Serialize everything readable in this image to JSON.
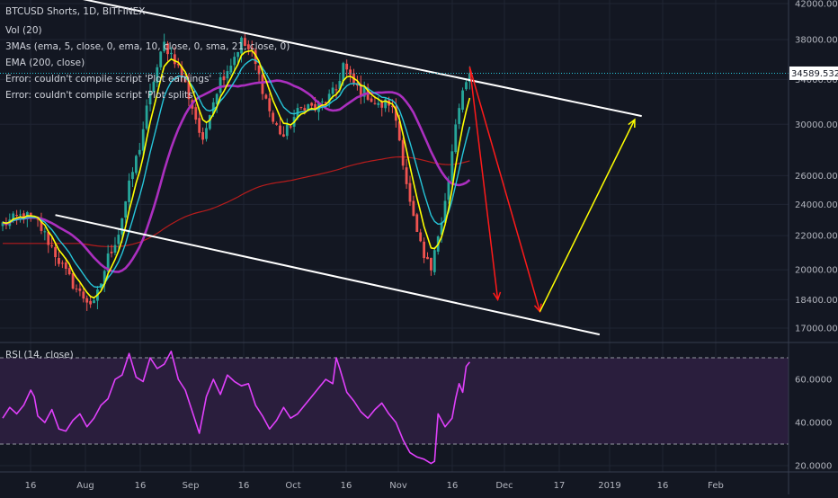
{
  "header": {
    "symbol_line": "BTCUSD Shorts, 1D, BITFINEX",
    "indicators": [
      "Vol (20)",
      "3MAs (ema, 5, close, 0, ema, 10, close, 0, sma, 21, close, 0)",
      "EMA (200, close)",
      "Error: couldn't compile script 'Plot earnings'",
      "Error: couldn't compile script 'Plot splits'"
    ]
  },
  "price_label": "34589.5329",
  "colors": {
    "background": "#131722",
    "grid": "#1f2433",
    "up": "#26a69a",
    "down": "#ef5350",
    "ema5": "#ffff00",
    "ema10": "#26c6da",
    "sma21": "#ab2fbf",
    "ema200": "#b71c1c",
    "channel": "#ffffff",
    "rsi": "#e040fb",
    "rsi_band": "#2a1e3d",
    "price_tag": "#ffffff",
    "projection_down": "#ff1a1a",
    "projection_up": "#ffff00"
  },
  "chart_data": [
    {
      "type": "candlestick",
      "title": "BTCUSD Shorts, 1D, BITFINEX",
      "y_scale": "log",
      "ylim": [
        16500,
        42500
      ],
      "y_ticks": [
        42000,
        38000,
        34000,
        30000,
        26000,
        24000,
        22000,
        20000,
        18400,
        17000
      ],
      "y_tick_labels": [
        "42000.0000",
        "38000.0000",
        "34000.0000",
        "30000.0000",
        "26000.0000",
        "24000.0000",
        "22000.0000",
        "20000.0000",
        "18400.0000",
        "17000.0000"
      ],
      "x_tick_labels": [
        "16",
        "Aug",
        "16",
        "Sep",
        "16",
        "Oct",
        "16",
        "Nov",
        "16",
        "Dec",
        "17",
        "2019",
        "16",
        "Feb"
      ],
      "last_value": 34589.5329,
      "close_path": [
        [
          0,
          22700
        ],
        [
          6,
          23300
        ],
        [
          10,
          22800
        ],
        [
          14,
          21300
        ],
        [
          18,
          19800
        ],
        [
          22,
          18700
        ],
        [
          26,
          18100
        ],
        [
          28,
          19300
        ],
        [
          30,
          20700
        ],
        [
          33,
          22200
        ],
        [
          35,
          24200
        ],
        [
          37,
          26300
        ],
        [
          39,
          28200
        ],
        [
          41,
          31200
        ],
        [
          43,
          34000
        ],
        [
          46,
          37500
        ],
        [
          49,
          36000
        ],
        [
          52,
          33500
        ],
        [
          55,
          30500
        ],
        [
          57,
          28300
        ],
        [
          59,
          31300
        ],
        [
          62,
          34000
        ],
        [
          65,
          35600
        ],
        [
          68,
          37800
        ],
        [
          71,
          36500
        ],
        [
          74,
          33200
        ],
        [
          77,
          30200
        ],
        [
          80,
          29000
        ],
        [
          83,
          30600
        ],
        [
          86,
          31700
        ],
        [
          89,
          31300
        ],
        [
          92,
          32000
        ],
        [
          95,
          33000
        ],
        [
          97,
          35500
        ],
        [
          99,
          34000
        ],
        [
          101,
          33200
        ],
        [
          104,
          32600
        ],
        [
          107,
          31500
        ],
        [
          110,
          31900
        ],
        [
          112,
          30400
        ],
        [
          114,
          27200
        ],
        [
          116,
          24000
        ],
        [
          118,
          22000
        ],
        [
          120,
          20600
        ],
        [
          122,
          20100
        ],
        [
          123,
          21500
        ],
        [
          125,
          22800
        ],
        [
          127,
          25500
        ],
        [
          129,
          30000
        ],
        [
          131,
          32500
        ],
        [
          133,
          34589.5
        ]
      ],
      "projection_down": [
        [
          133,
          35200
        ],
        [
          141,
          18400
        ],
        [
          153,
          17800
        ]
      ],
      "projection_up": [
        [
          153,
          17800
        ],
        [
          180,
          30400
        ]
      ],
      "channel_upper": [
        [
          22,
          42600
        ],
        [
          182,
          30700
        ]
      ],
      "channel_lower": [
        [
          15,
          23300
        ],
        [
          170,
          16700
        ]
      ]
    },
    {
      "type": "line",
      "title": "RSI (14, close)",
      "ylim": [
        18,
        78
      ],
      "y_ticks": [
        60,
        40,
        20
      ],
      "y_tick_labels": [
        "60.0000",
        "40.0000",
        "20.0000"
      ],
      "bands": [
        30,
        70
      ],
      "x": [
        0,
        2,
        4,
        6,
        8,
        9,
        10,
        12,
        14,
        16,
        18,
        20,
        22,
        24,
        26,
        28,
        30,
        32,
        34,
        36,
        38,
        40,
        42,
        44,
        46,
        48,
        50,
        52,
        54,
        56,
        58,
        60,
        62,
        64,
        66,
        68,
        70,
        72,
        74,
        76,
        78,
        80,
        82,
        84,
        86,
        88,
        90,
        92,
        94,
        95,
        96,
        98,
        100,
        102,
        104,
        106,
        108,
        110,
        112,
        114,
        116,
        118,
        120,
        122,
        123,
        124,
        126,
        128,
        129,
        130,
        131,
        132,
        133
      ],
      "values": [
        42,
        47,
        44,
        48,
        55,
        52,
        43,
        40,
        46,
        37,
        36,
        41,
        44,
        38,
        42,
        48,
        51,
        60,
        62,
        72,
        61,
        59,
        70,
        65,
        67,
        73,
        60,
        55,
        45,
        35,
        52,
        60,
        53,
        62,
        59,
        57,
        58,
        48,
        43,
        37,
        41,
        47,
        42,
        44,
        48,
        52,
        56,
        60,
        58,
        70,
        65,
        54,
        50,
        45,
        42,
        46,
        49,
        44,
        40,
        32,
        26,
        24,
        23,
        21,
        22,
        44,
        38,
        42,
        51,
        58,
        54,
        66,
        68
      ]
    }
  ]
}
